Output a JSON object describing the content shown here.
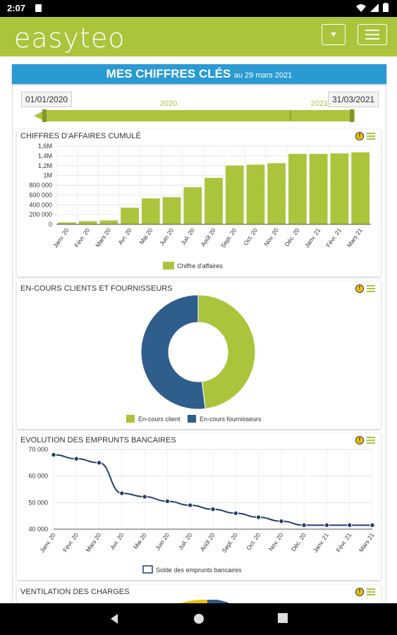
{
  "status": {
    "time": "2:07"
  },
  "app": {
    "logo": "easyteo"
  },
  "banner": {
    "title": "MES CHIFFRES CLÉS",
    "subtitle": "au 29 mars 2021"
  },
  "period": {
    "start_date": "01/01/2020",
    "end_date": "31/03/2021",
    "year_start": "2020",
    "year_end": "2021"
  },
  "colors": {
    "accent": "#aac43c",
    "banner": "#2a9ad3",
    "navy": "#2f5d8c",
    "line": "#1f3f70"
  },
  "icons": {
    "info": "info-icon",
    "menu": "hamburger-menu-icon",
    "dropdown": "dropdown-arrow-icon"
  },
  "chart_data": [
    {
      "type": "bar",
      "title": "CHIFFRES D'AFFAIRES CUMULÉ",
      "categories": [
        "Janv. 20",
        "Févr. 20",
        "Mars 20",
        "Avr. 20",
        "Mai 20",
        "Juin 20",
        "Juil. 20",
        "Août 20",
        "Sept. 20",
        "Oct. 20",
        "Nov. 20",
        "Déc. 20",
        "Janv. 21",
        "Févr. 21",
        "Mars 21"
      ],
      "series": [
        {
          "name": "Chiffre d'affaires",
          "values": [
            40000,
            65000,
            80000,
            340000,
            530000,
            555000,
            760000,
            950000,
            1200000,
            1220000,
            1250000,
            1440000,
            1440000,
            1450000,
            1470000
          ]
        }
      ],
      "ylim": [
        0,
        1600000
      ],
      "yticks": [
        "0",
        "200 000",
        "400 000",
        "600 000",
        "800 000",
        "1M",
        "1,2M",
        "1,4M",
        "1,6M"
      ],
      "legend": "bottom"
    },
    {
      "type": "pie",
      "title": "EN-COURS CLIENTS ET FOURNISSEURS",
      "categories": [
        "En-cours client",
        "En-cours fournisseurs"
      ],
      "values": [
        48,
        52
      ],
      "legend": "bottom"
    },
    {
      "type": "line",
      "title": "EVOLUTION DES EMPRUNTS BANCAIRES",
      "categories": [
        "Janv. 20",
        "Févr. 20",
        "Mars 20",
        "Avr. 20",
        "Mai 20",
        "Juin 20",
        "Juil. 20",
        "Août 20",
        "Sept. 20",
        "Oct. 20",
        "Nov. 20",
        "Déc. 20",
        "Janv. 21",
        "Févr. 21",
        "Mars 21"
      ],
      "series": [
        {
          "name": "Solde des emprunts bancaires",
          "values": [
            68000,
            66500,
            65000,
            53500,
            52200,
            50500,
            49000,
            47500,
            46000,
            44500,
            43000,
            41500,
            41500,
            41500,
            41500
          ]
        }
      ],
      "ylim": [
        40000,
        70000
      ],
      "yticks": [
        "40 000",
        "50 000",
        "60 000",
        "70 000"
      ],
      "legend": "bottom"
    }
  ],
  "card4": {
    "title": "VENTILATION DES CHARGES"
  }
}
